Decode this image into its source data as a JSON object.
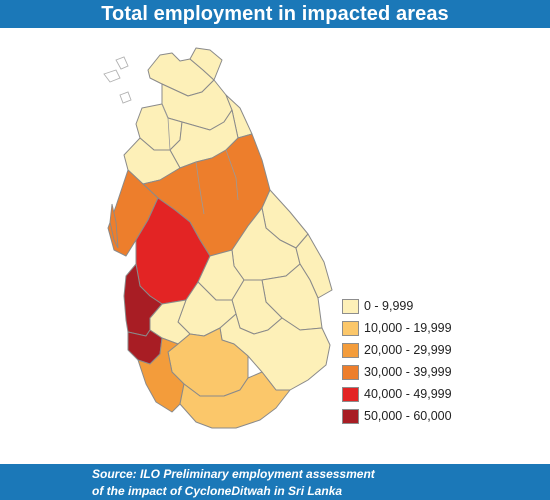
{
  "title": "Total employment in impacted areas",
  "legend": {
    "items": [
      {
        "label": "0 - 9,999",
        "color": "#fdf0b8"
      },
      {
        "label": "10,000 - 19,999",
        "color": "#fbc76a"
      },
      {
        "label": "20,000 - 29,999",
        "color": "#f39c3b"
      },
      {
        "label": "30,000 - 39,999",
        "color": "#ed7e2c"
      },
      {
        "label": "40,000 - 49,999",
        "color": "#e32424"
      },
      {
        "label": "50,000 - 60,000",
        "color": "#a81d24"
      }
    ]
  },
  "source": {
    "line1": "Source: ILO Preliminary employment assessment",
    "line2": "of the impact of CycloneDitwah in Sri Lanka"
  },
  "colors": {
    "banner": "#1b78b8",
    "background": "#dcecf4",
    "boundary": "#8a8a8a",
    "coast": "#7a7a7a"
  }
}
